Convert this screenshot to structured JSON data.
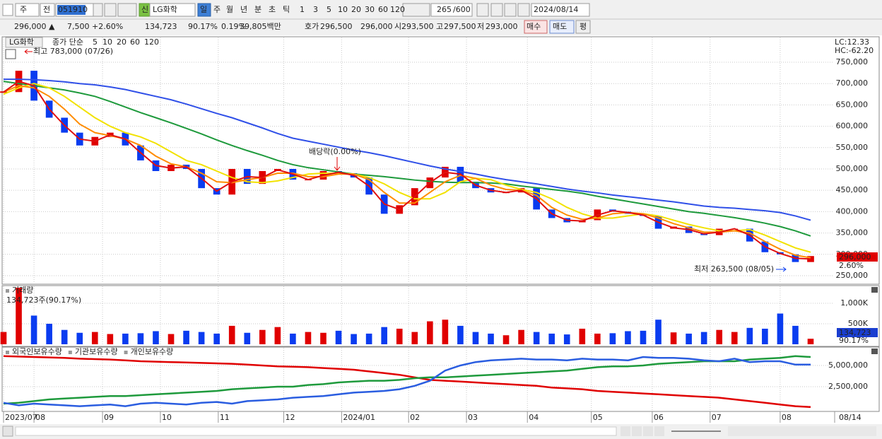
{
  "toolbar": {
    "period": "주",
    "market": "전",
    "code": "051910",
    "badge": "신",
    "name": "LG화학",
    "intervals": [
      "일",
      "주",
      "월",
      "년",
      "분",
      "초",
      "틱"
    ],
    "minutes": [
      "1",
      "3",
      "5",
      "10",
      "20",
      "30",
      "60",
      "120"
    ],
    "count": "265",
    "max": "/600",
    "date": "2024/08/14"
  },
  "info_bar": {
    "price": "296,000 ▲",
    "change": "7,500",
    "rate": "+2.60%",
    "volume": "134,723",
    "volume_ratio": "90.17%",
    "turnover": "0.19%",
    "amount": "39,805백만",
    "quote_label": "호가",
    "ask": "296,500",
    "bid": "296,000",
    "open_label": "시",
    "open": "293,500",
    "high_label": "고",
    "high": "297,500",
    "low_label": "저",
    "low": "293,000",
    "buy": "매수",
    "sell": "매도",
    "avg": "평"
  },
  "chart_data": [
    {
      "type": "candlestick",
      "name": "LG화학",
      "legend_label": "종가 단순",
      "up_color": "#e00000",
      "down_color": "#0a3cf0",
      "xlim": [
        0,
        53
      ],
      "xticks": [
        {
          "value": 0,
          "label": "2023/07"
        },
        {
          "value": 2,
          "label": "08"
        },
        {
          "value": 6.5,
          "label": "09"
        },
        {
          "value": 10.3,
          "label": "10"
        },
        {
          "value": 14.1,
          "label": "11"
        },
        {
          "value": 18.4,
          "label": "12"
        },
        {
          "value": 22.2,
          "label": "2024/01"
        },
        {
          "value": 26.6,
          "label": "02"
        },
        {
          "value": 30.4,
          "label": "03"
        },
        {
          "value": 34.4,
          "label": "04"
        },
        {
          "value": 38.6,
          "label": "05"
        },
        {
          "value": 42.6,
          "label": "06"
        },
        {
          "value": 46.4,
          "label": "07"
        },
        {
          "value": 51,
          "label": "08"
        }
      ],
      "last_date": "08/14",
      "ylim": [
        233400,
        809600
      ],
      "yticks": [
        {
          "value": 250000,
          "label": "250,000"
        },
        {
          "value": 300000,
          "label": "300,000"
        },
        {
          "value": 350000,
          "label": "350,000"
        },
        {
          "value": 400000,
          "label": "400,000"
        },
        {
          "value": 450000,
          "label": "450,000"
        },
        {
          "value": 500000,
          "label": "500,000"
        },
        {
          "value": 550000,
          "label": "550,000"
        },
        {
          "value": 600000,
          "label": "600,000"
        },
        {
          "value": 650000,
          "label": "650,000"
        },
        {
          "value": 700000,
          "label": "700,000"
        },
        {
          "value": 750000,
          "label": "750,000"
        }
      ],
      "grid": true,
      "close": [
        680000,
        730000,
        660000,
        620000,
        585000,
        555000,
        575000,
        585000,
        555000,
        520000,
        495000,
        510000,
        500000,
        455000,
        440000,
        500000,
        465000,
        495000,
        500000,
        475000,
        475000,
        495000,
        490000,
        480000,
        440000,
        395000,
        415000,
        455000,
        480000,
        505000,
        470000,
        455000,
        445000,
        445000,
        455000,
        405000,
        385000,
        375000,
        380000,
        405000,
        400000,
        395000,
        390000,
        360000,
        365000,
        350000,
        345000,
        360000,
        360000,
        330000,
        305000,
        300000,
        282000,
        296000
      ],
      "series": [
        {
          "name": "5",
          "color": "#e01010",
          "values": [
            680000,
            705000,
            695000,
            640000,
            602000,
            570000,
            565000,
            580000,
            570000,
            538000,
            508000,
            502000,
            505000,
            478000,
            448000,
            470000,
            482000,
            480000,
            498000,
            488000,
            475000,
            485000,
            492000,
            485000,
            460000,
            418000,
            405000,
            435000,
            468000,
            492000,
            488000,
            462000,
            450000,
            445000,
            450000,
            430000,
            395000,
            380000,
            378000,
            392000,
            402000,
            398000,
            392000,
            375000,
            362000,
            358000,
            348000,
            352000,
            360000,
            345000,
            318000,
            302000,
            291000,
            289000
          ]
        },
        {
          "name": "10",
          "color": "#ff8c00",
          "values": [
            680000,
            695000,
            690000,
            670000,
            640000,
            605000,
            585000,
            578000,
            570000,
            555000,
            530000,
            512000,
            505000,
            490000,
            470000,
            468000,
            475000,
            480000,
            490000,
            490000,
            482000,
            482000,
            488000,
            488000,
            475000,
            445000,
            420000,
            420000,
            445000,
            470000,
            485000,
            478000,
            462000,
            452000,
            450000,
            438000,
            410000,
            392000,
            382000,
            385000,
            395000,
            398000,
            395000,
            385000,
            372000,
            362000,
            352000,
            352000,
            355000,
            350000,
            330000,
            312000,
            298000,
            292000
          ]
        },
        {
          "name": "20",
          "color": "#f2e200",
          "values": [
            675000,
            690000,
            700000,
            690000,
            670000,
            645000,
            620000,
            600000,
            585000,
            575000,
            560000,
            540000,
            520000,
            510000,
            495000,
            480000,
            470000,
            468000,
            472000,
            480000,
            488000,
            490000,
            490000,
            488000,
            480000,
            465000,
            445000,
            430000,
            430000,
            445000,
            470000,
            478000,
            475000,
            462000,
            452000,
            445000,
            430000,
            410000,
            395000,
            385000,
            385000,
            390000,
            395000,
            390000,
            380000,
            370000,
            362000,
            355000,
            355000,
            358000,
            345000,
            330000,
            315000,
            305000
          ]
        },
        {
          "name": "60",
          "color": "#1e9a3c",
          "values": [
            705000,
            700000,
            695000,
            690000,
            685000,
            678000,
            670000,
            658000,
            645000,
            632000,
            620000,
            608000,
            595000,
            582000,
            568000,
            555000,
            543000,
            532000,
            520000,
            510000,
            503000,
            498000,
            493000,
            488000,
            485000,
            482000,
            478000,
            474000,
            471000,
            469000,
            468000,
            468000,
            467000,
            465000,
            460000,
            456000,
            452000,
            448000,
            443000,
            436000,
            430000,
            424000,
            418000,
            412000,
            406000,
            400000,
            396000,
            391000,
            386000,
            380000,
            373000,
            365000,
            355000,
            343000
          ]
        },
        {
          "name": "120",
          "color": "#3050e8",
          "values": [
            710000,
            710000,
            709000,
            707000,
            704000,
            700000,
            697000,
            692000,
            686000,
            678000,
            670000,
            662000,
            652000,
            641000,
            630000,
            620000,
            608000,
            596000,
            583000,
            572000,
            565000,
            558000,
            551000,
            544000,
            538000,
            531000,
            523000,
            515000,
            507000,
            500000,
            494000,
            488000,
            481000,
            475000,
            470000,
            465000,
            459000,
            453000,
            448000,
            444000,
            439000,
            435000,
            431000,
            427000,
            423000,
            418000,
            413000,
            410000,
            408000,
            405000,
            402000,
            398000,
            390000,
            380000
          ]
        }
      ],
      "high_note": "최고 783,000 (07/26)",
      "dividend_note": "배당락(0.00%)",
      "low_note": "최저 263,500 (08/05)",
      "lc": "LC:12.33",
      "hc": "HC:-62.20",
      "last_price": "296,000",
      "last_rate": "2.60%"
    },
    {
      "type": "bar",
      "title": "거래량",
      "subtitle": "134,723주(90.17%)",
      "ylim": [
        0,
        1380000
      ],
      "yticks": [
        {
          "value": 500000,
          "label": "500K"
        },
        {
          "value": 1000000,
          "label": "1,000K"
        }
      ],
      "values": [
        300000,
        1380000,
        700000,
        500000,
        350000,
        280000,
        300000,
        250000,
        260000,
        270000,
        320000,
        250000,
        330000,
        300000,
        260000,
        450000,
        280000,
        350000,
        420000,
        260000,
        300000,
        280000,
        330000,
        250000,
        260000,
        420000,
        380000,
        300000,
        560000,
        600000,
        450000,
        300000,
        260000,
        220000,
        350000,
        300000,
        260000,
        240000,
        380000,
        260000,
        270000,
        320000,
        330000,
        600000,
        290000,
        260000,
        300000,
        350000,
        300000,
        400000,
        380000,
        750000,
        450000,
        134723
      ],
      "last_value": "134,723",
      "last_rate": "90.17%"
    },
    {
      "type": "line",
      "ylim": [
        0,
        7000000
      ],
      "yticks": [
        {
          "value": 2500000,
          "label": "2,500,000"
        },
        {
          "value": 5000000,
          "label": "5,000,000"
        }
      ],
      "series": [
        {
          "name": "외국인보유수량",
          "color": "#e00000",
          "values": [
            6100000,
            6050000,
            6000000,
            5950000,
            5900000,
            5800000,
            5750000,
            5700000,
            5600000,
            5500000,
            5450000,
            5400000,
            5350000,
            5300000,
            5250000,
            5200000,
            5100000,
            5000000,
            4900000,
            4850000,
            4800000,
            4700000,
            4600000,
            4500000,
            4300000,
            4100000,
            3900000,
            3600000,
            3300000,
            3200000,
            3100000,
            3000000,
            2900000,
            2800000,
            2700000,
            2600000,
            2400000,
            2300000,
            2200000,
            2000000,
            1900000,
            1800000,
            1700000,
            1600000,
            1500000,
            1400000,
            1300000,
            1200000,
            1000000,
            800000,
            600000,
            400000,
            200000,
            100000
          ]
        },
        {
          "name": "기관보유수량",
          "color": "#1e9a3c",
          "values": [
            500000,
            600000,
            800000,
            1000000,
            1100000,
            1200000,
            1300000,
            1400000,
            1400000,
            1500000,
            1600000,
            1700000,
            1800000,
            1900000,
            2000000,
            2200000,
            2300000,
            2400000,
            2500000,
            2500000,
            2700000,
            2800000,
            3000000,
            3100000,
            3200000,
            3200000,
            3300000,
            3500000,
            3600000,
            3600000,
            3700000,
            3800000,
            3900000,
            4000000,
            4100000,
            4200000,
            4300000,
            4400000,
            4600000,
            4800000,
            4900000,
            4900000,
            5000000,
            5200000,
            5300000,
            5400000,
            5500000,
            5500000,
            5500000,
            5700000,
            5800000,
            5900000,
            6100000,
            6000000
          ]
        },
        {
          "name": "개인보유수량",
          "color": "#2a5de0",
          "values": [
            600000,
            300000,
            500000,
            400000,
            300000,
            200000,
            300000,
            400000,
            200000,
            500000,
            600000,
            500000,
            400000,
            600000,
            700000,
            500000,
            800000,
            900000,
            1000000,
            1200000,
            1300000,
            1400000,
            1600000,
            1800000,
            1900000,
            2000000,
            2200000,
            2600000,
            3200000,
            4400000,
            5000000,
            5400000,
            5600000,
            5700000,
            5800000,
            5700000,
            5700000,
            5600000,
            5800000,
            5700000,
            5700000,
            5600000,
            6000000,
            5900000,
            5900000,
            5800000,
            5600000,
            5500000,
            5800000,
            5400000,
            5500000,
            5500000,
            5100000,
            5100000
          ]
        }
      ]
    }
  ]
}
